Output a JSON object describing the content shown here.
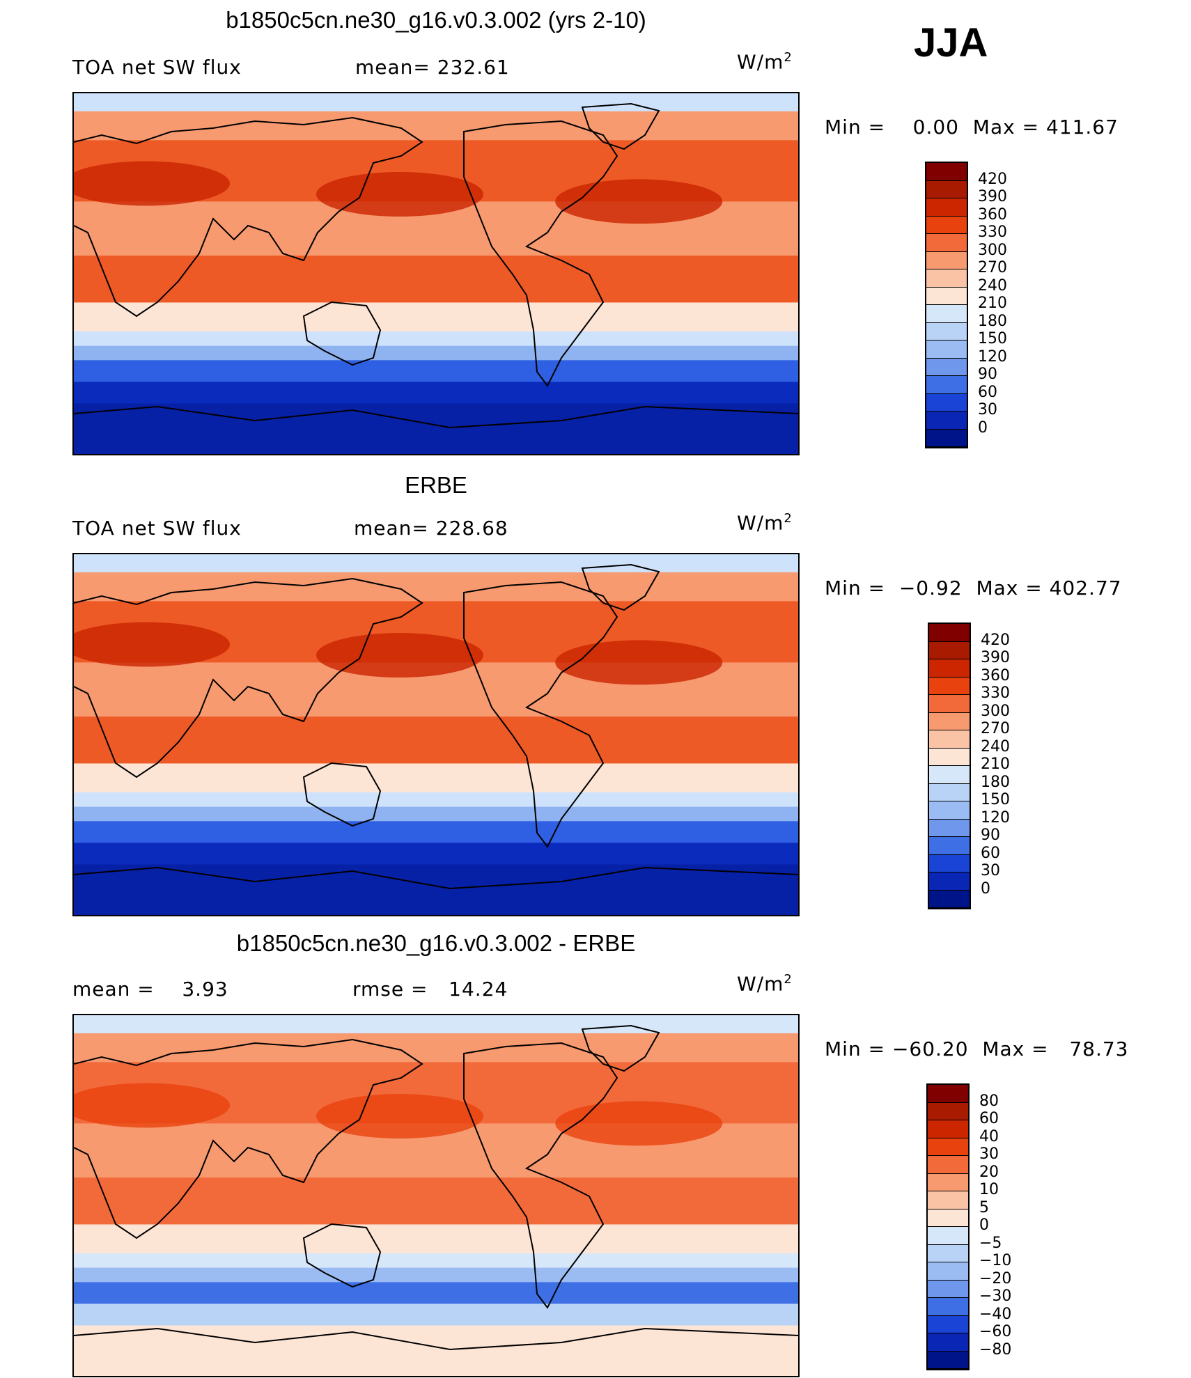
{
  "season": "JJA",
  "panels": [
    {
      "id": "model",
      "title": "b1850c5cn.ne30_g16.v0.3.002 (yrs 2-10)",
      "left_label": "TOA net SW flux",
      "center_label": "mean= 232.61",
      "units": "W/m",
      "units_sup": "2",
      "minmax": "Min =    0.00  Max = 411.67",
      "colorbar": {
        "labels": [
          "420",
          "390",
          "360",
          "330",
          "300",
          "270",
          "240",
          "210",
          "180",
          "150",
          "120",
          "90",
          "60",
          "30",
          "0"
        ],
        "colors": [
          "#800000",
          "#a81b00",
          "#cc2600",
          "#e8420f",
          "#f36a3a",
          "#f79a6f",
          "#fac3a6",
          "#fde5d6",
          "#d6e7fa",
          "#b9d3f7",
          "#9bbcf2",
          "#6f98ec",
          "#3f6fe5",
          "#1a44d6",
          "#0a26b5",
          "#00148a"
        ]
      },
      "map_colors": {
        "hot": "#c92400",
        "warm": "#ee5a26",
        "mild": "#f79a6f",
        "pale": "#fde5d6",
        "coolpale": "#cfe2fb",
        "cool": "#8fb3f0",
        "blue": "#2f5fe2",
        "deep": "#0b2bbd",
        "navy": "#0620a6"
      }
    },
    {
      "id": "obs",
      "title": "ERBE",
      "left_label": "TOA net SW flux",
      "center_label": "mean= 228.68",
      "units": "W/m",
      "units_sup": "2",
      "minmax": "Min =  −0.92  Max = 402.77",
      "colorbar": {
        "labels": [
          "420",
          "390",
          "360",
          "330",
          "300",
          "270",
          "240",
          "210",
          "180",
          "150",
          "120",
          "90",
          "60",
          "30",
          "0"
        ],
        "colors": [
          "#800000",
          "#a81b00",
          "#cc2600",
          "#e8420f",
          "#f36a3a",
          "#f79a6f",
          "#fac3a6",
          "#fde5d6",
          "#d6e7fa",
          "#b9d3f7",
          "#9bbcf2",
          "#6f98ec",
          "#3f6fe5",
          "#1a44d6",
          "#0a26b5",
          "#00148a"
        ]
      },
      "map_colors": {
        "hot": "#c92400",
        "warm": "#ee5a26",
        "mild": "#f79a6f",
        "pale": "#fde5d6",
        "coolpale": "#cfe2fb",
        "cool": "#8fb3f0",
        "blue": "#2f5fe2",
        "deep": "#0b2bbd",
        "navy": "#0620a6"
      }
    },
    {
      "id": "diff",
      "title": "b1850c5cn.ne30_g16.v0.3.002 - ERBE",
      "left_label": "mean =    3.93",
      "center_label": "rmse =   14.24",
      "units": "W/m",
      "units_sup": "2",
      "minmax": "Min = −60.20  Max =   78.73",
      "colorbar": {
        "labels": [
          "80",
          "60",
          "40",
          "30",
          "20",
          "10",
          "5",
          "0",
          "−5",
          "−10",
          "−20",
          "−30",
          "−40",
          "−60",
          "−80"
        ],
        "colors": [
          "#800000",
          "#a81b00",
          "#cc2600",
          "#e8420f",
          "#f36a3a",
          "#f79a6f",
          "#fac3a6",
          "#fde5d6",
          "#d6e7fa",
          "#b9d3f7",
          "#9bbcf2",
          "#6f98ec",
          "#3f6fe5",
          "#1a44d6",
          "#0a26b5",
          "#00148a"
        ]
      },
      "map_colors": {
        "hot": "#e8420f",
        "warm": "#f36a3a",
        "mild": "#f79a6f",
        "pale": "#fde5d6",
        "coolpale": "#d6e7fa",
        "cool": "#9bbcf2",
        "blue": "#3f6fe5",
        "deep": "#b9d3f7",
        "navy": "#fde5d6"
      }
    }
  ]
}
